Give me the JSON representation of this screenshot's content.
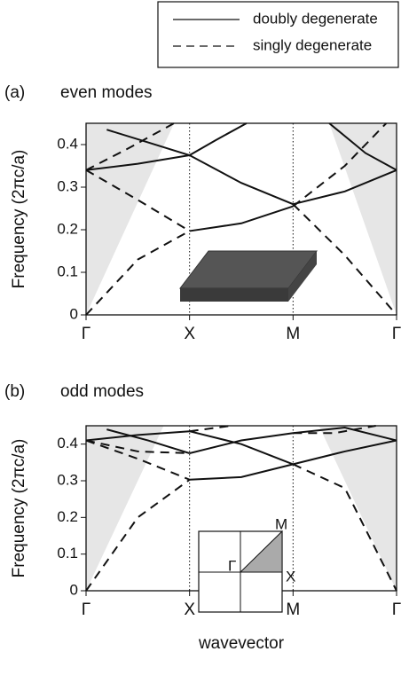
{
  "legend": {
    "entries": [
      {
        "label": "doubly degenerate",
        "dash": false
      },
      {
        "label": "singly degenerate",
        "dash": true
      }
    ]
  },
  "chart_data": [
    {
      "type": "line",
      "panel_label": "(a)",
      "title": "even modes",
      "ylabel": "Frequency (2πc/a)",
      "xlim": [
        0,
        3
      ],
      "xticks": [
        {
          "value": 0,
          "label": "Γ"
        },
        {
          "value": 1,
          "label": "X"
        },
        {
          "value": 2,
          "label": "M"
        },
        {
          "value": 3,
          "label": "Γ"
        }
      ],
      "ylim": [
        0,
        0.45
      ],
      "yticks": [
        0,
        0.1,
        0.2,
        0.3,
        0.4
      ],
      "x_grid": "dotted",
      "shade_color": "#e6e6e6",
      "shaded": [
        {
          "x": [
            0,
            0.85,
            0
          ],
          "values": [
            0,
            0.45,
            0.45
          ]
        },
        {
          "x": [
            3,
            2.35,
            3
          ],
          "values": [
            0,
            0.45,
            0.45
          ]
        }
      ],
      "series": [
        {
          "style": "solid",
          "x": [
            0,
            0.5,
            1
          ],
          "values": [
            0.34,
            0.355,
            0.375
          ]
        },
        {
          "style": "solid",
          "x": [
            0.2,
            0.6,
            1,
            1.5,
            2
          ],
          "values": [
            0.435,
            0.405,
            0.375,
            0.31,
            0.26
          ]
        },
        {
          "style": "solid",
          "x": [
            1,
            1.25,
            1.55
          ],
          "values": [
            0.375,
            0.41,
            0.45
          ]
        },
        {
          "style": "solid",
          "x": [
            1,
            1.5,
            2
          ],
          "values": [
            0.197,
            0.215,
            0.255
          ]
        },
        {
          "style": "solid",
          "x": [
            2,
            2.5,
            3
          ],
          "values": [
            0.26,
            0.29,
            0.34
          ]
        },
        {
          "style": "solid",
          "x": [
            2.35,
            2.7,
            3
          ],
          "values": [
            0.45,
            0.38,
            0.34
          ]
        },
        {
          "style": "dashed",
          "x": [
            0,
            0.5,
            1
          ],
          "values": [
            0,
            0.13,
            0.197
          ]
        },
        {
          "style": "dashed",
          "x": [
            0,
            0.5,
            1
          ],
          "values": [
            0.34,
            0.27,
            0.197
          ]
        },
        {
          "style": "dashed",
          "x": [
            0,
            0.4,
            0.85
          ],
          "values": [
            0.34,
            0.39,
            0.45
          ]
        },
        {
          "style": "dashed",
          "x": [
            2,
            2.5,
            2.9
          ],
          "values": [
            0.255,
            0.35,
            0.45
          ]
        },
        {
          "style": "dashed",
          "x": [
            2,
            2.5,
            3
          ],
          "values": [
            0.26,
            0.14,
            0
          ]
        }
      ]
    },
    {
      "type": "line",
      "panel_label": "(b)",
      "title": "odd modes",
      "ylabel": "Frequency (2πc/a)",
      "xlabel": "wavevector",
      "xlim": [
        0,
        3
      ],
      "xticks": [
        {
          "value": 0,
          "label": "Γ"
        },
        {
          "value": 1,
          "label": "X"
        },
        {
          "value": 2,
          "label": "M"
        },
        {
          "value": 3,
          "label": "Γ"
        }
      ],
      "ylim": [
        0,
        0.45
      ],
      "yticks": [
        0,
        0.1,
        0.2,
        0.3,
        0.4
      ],
      "x_grid": "dotted",
      "shade_color": "#e6e6e6",
      "shaded": [
        {
          "x": [
            0,
            0.75,
            0
          ],
          "values": [
            0,
            0.45,
            0.45
          ]
        },
        {
          "x": [
            3,
            2.25,
            3
          ],
          "values": [
            0,
            0.45,
            0.45
          ]
        }
      ],
      "inset_labels": [
        "M",
        "Γ",
        "X"
      ],
      "series": [
        {
          "style": "solid",
          "x": [
            0,
            0.5,
            1
          ],
          "values": [
            0.41,
            0.425,
            0.435
          ]
        },
        {
          "style": "solid",
          "x": [
            0.2,
            0.6,
            1
          ],
          "values": [
            0.44,
            0.41,
            0.375
          ]
        },
        {
          "style": "solid",
          "x": [
            1,
            1.5,
            2
          ],
          "values": [
            0.303,
            0.31,
            0.345
          ]
        },
        {
          "style": "solid",
          "x": [
            1,
            1.5,
            2
          ],
          "values": [
            0.375,
            0.41,
            0.43
          ]
        },
        {
          "style": "solid",
          "x": [
            1,
            1.5,
            2
          ],
          "values": [
            0.435,
            0.4,
            0.345
          ]
        },
        {
          "style": "solid",
          "x": [
            2,
            2.5,
            3
          ],
          "values": [
            0.345,
            0.38,
            0.41
          ]
        },
        {
          "style": "solid",
          "x": [
            2,
            2.5,
            3
          ],
          "values": [
            0.43,
            0.445,
            0.41
          ]
        },
        {
          "style": "dashed",
          "x": [
            0,
            0.5,
            1
          ],
          "values": [
            0,
            0.2,
            0.303
          ]
        },
        {
          "style": "dashed",
          "x": [
            0,
            0.5,
            1
          ],
          "values": [
            0.41,
            0.36,
            0.303
          ]
        },
        {
          "style": "dashed",
          "x": [
            0,
            0.5,
            1
          ],
          "values": [
            0.41,
            0.38,
            0.375
          ]
        },
        {
          "style": "dashed",
          "x": [
            2,
            2.5,
            3
          ],
          "values": [
            0.345,
            0.28,
            0
          ]
        },
        {
          "style": "dashed",
          "x": [
            2,
            2.4,
            2.8
          ],
          "values": [
            0.43,
            0.43,
            0.45
          ]
        },
        {
          "style": "dashed",
          "x": [
            1,
            1.4
          ],
          "values": [
            0.435,
            0.45
          ]
        }
      ]
    }
  ]
}
